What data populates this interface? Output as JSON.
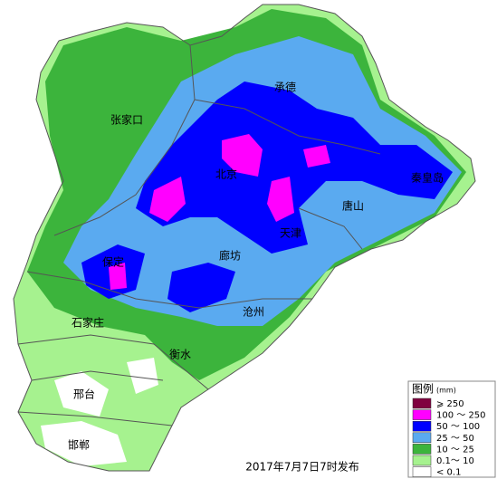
{
  "map": {
    "cities": [
      "承德",
      "张家口",
      "北京",
      "唐山",
      "秦皇岛",
      "天津",
      "廊坊",
      "保定",
      "沧州",
      "石家庄",
      "衡水",
      "邢台",
      "邯郸"
    ],
    "legend": {
      "title": "图例",
      "unit": "(mm)",
      "items": [
        {
          "label": "⩾ 250",
          "color": "#800040"
        },
        {
          "label": "100 ～ 250",
          "color": "#ff00ff"
        },
        {
          "label": "50 ～ 100",
          "color": "#0000ff"
        },
        {
          "label": "25 ～ 50",
          "color": "#5aaaf0"
        },
        {
          "label": "10 ～ 25",
          "color": "#3cb43c"
        },
        {
          "label": "0.1～ 10",
          "color": "#a6f28f"
        },
        {
          "label": "< 0.1",
          "color": "#ffffff"
        }
      ]
    },
    "caption": "2017年7月7日7时发布"
  }
}
